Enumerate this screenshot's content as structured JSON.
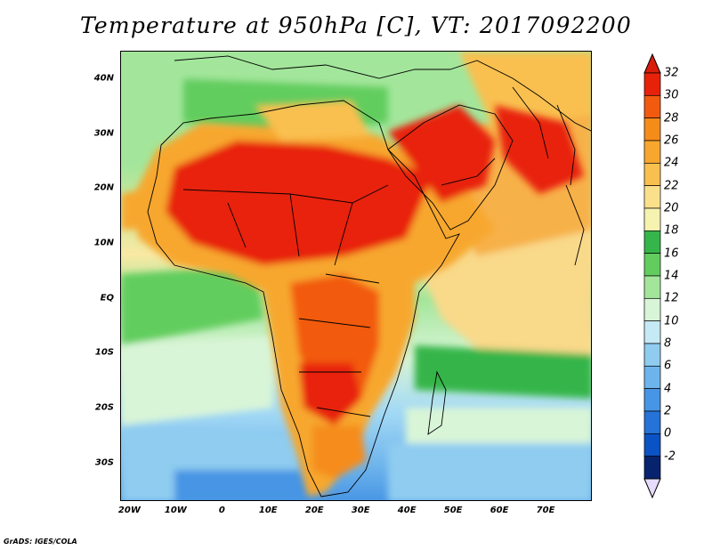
{
  "title": "Temperature at 950hPa [C], VT: 2017092200",
  "credit": "GrADS: IGES/COLA",
  "map": {
    "lat_labels": [
      "40N",
      "30N",
      "20N",
      "10N",
      "EQ",
      "10S",
      "20S",
      "30S"
    ],
    "lat_values": [
      40,
      30,
      20,
      10,
      0,
      -10,
      -20,
      -30
    ],
    "lon_labels": [
      "20W",
      "10W",
      "0",
      "10E",
      "20E",
      "30E",
      "40E",
      "50E",
      "60E",
      "70E"
    ],
    "lon_values": [
      -20,
      -10,
      0,
      10,
      20,
      30,
      40,
      50,
      60,
      70
    ],
    "lon_range": [
      -22,
      80
    ],
    "lat_range": [
      -37,
      45
    ]
  },
  "colorbar": {
    "labels": [
      "32",
      "30",
      "28",
      "26",
      "24",
      "22",
      "20",
      "18",
      "16",
      "14",
      "12",
      "10",
      "8",
      "6",
      "4",
      "2",
      "0",
      "-2"
    ],
    "colors": [
      "#e8220a",
      "#f25a0f",
      "#f58c1a",
      "#f7a72f",
      "#f9c04f",
      "#fbe08c",
      "#f6f2b0",
      "#36b54a",
      "#62cd5e",
      "#a3e69b",
      "#d9f5d7",
      "#c5e9f5",
      "#8fccf0",
      "#6eb4ec",
      "#4795e4",
      "#2572d8",
      "#0b52c4",
      "#08236e"
    ]
  }
}
